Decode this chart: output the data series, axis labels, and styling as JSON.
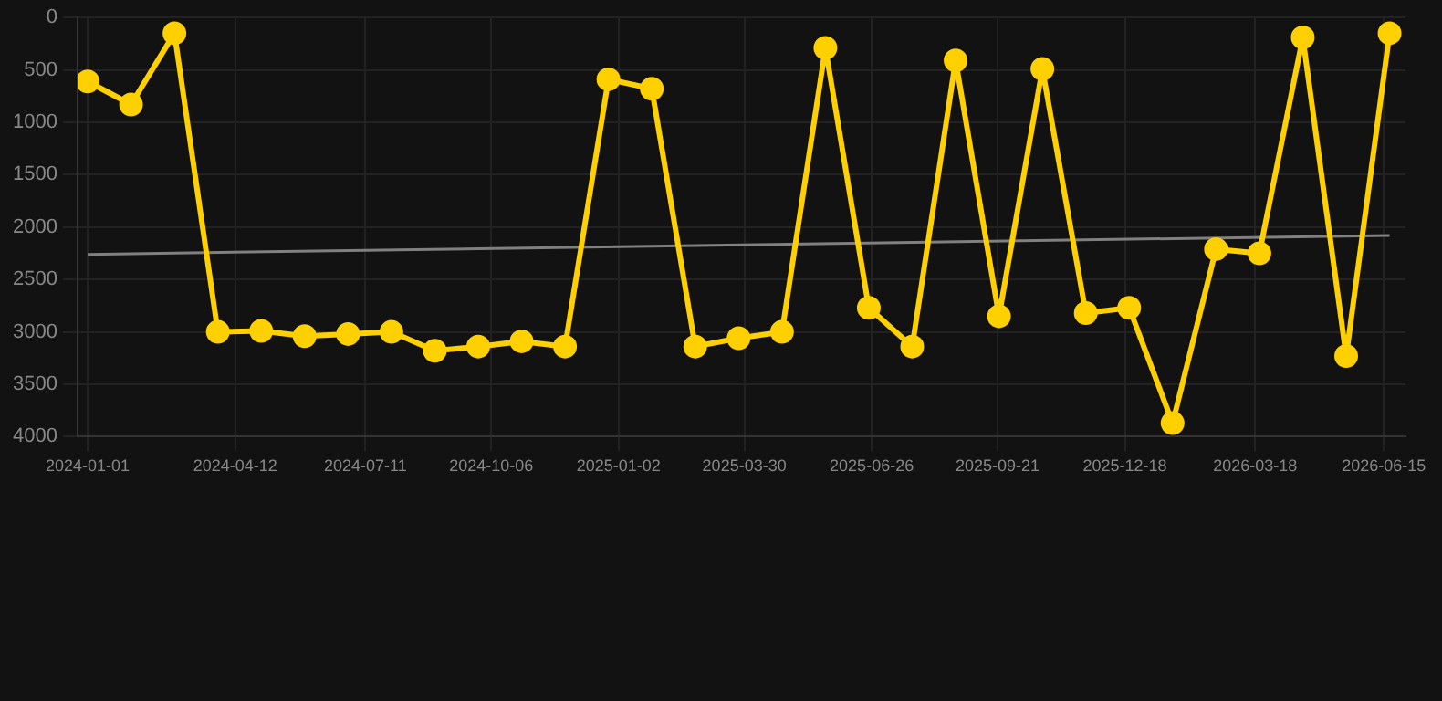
{
  "chart_data": {
    "type": "line",
    "x": [
      "2024-01-01",
      "2024-01-31",
      "2024-03-01",
      "2024-03-31",
      "2024-04-30",
      "2024-05-30",
      "2024-06-29",
      "2024-07-29",
      "2024-08-28",
      "2024-09-27",
      "2024-10-27",
      "2024-11-26",
      "2024-12-26",
      "2025-01-25",
      "2025-02-24",
      "2025-03-26",
      "2025-04-25",
      "2025-05-25",
      "2025-06-24",
      "2025-07-24",
      "2025-08-23",
      "2025-09-22",
      "2025-10-22",
      "2025-11-21",
      "2025-12-21",
      "2026-01-20",
      "2026-02-19",
      "2026-03-21",
      "2026-04-20",
      "2026-05-20",
      "2026-06-19"
    ],
    "series": [
      {
        "color": "#ffd000",
        "values": [
          610,
          830,
          150,
          3000,
          2990,
          3040,
          3020,
          3000,
          3180,
          3140,
          3090,
          3140,
          590,
          680,
          3140,
          3060,
          3000,
          290,
          2770,
          3140,
          410,
          2850,
          490,
          2820,
          2770,
          3870,
          2210,
          2250,
          190,
          3230,
          150
        ]
      },
      {
        "type": "line",
        "color": "#808080",
        "marker": "none",
        "x": [
          "2024-01-01",
          "2026-06-19"
        ],
        "values": [
          2260,
          2080
        ]
      }
    ],
    "ylim": [
      4000,
      0
    ],
    "yticks": [
      0,
      500,
      1000,
      1500,
      2000,
      2500,
      3000,
      3500,
      4000
    ],
    "xlim": [
      "2023-12-25",
      "2026-06-30"
    ],
    "xticks": [
      "2024-01-01",
      "2024-04-12",
      "2024-07-11",
      "2024-10-06",
      "2025-01-02",
      "2025-03-30",
      "2025-06-26",
      "2025-09-21",
      "2025-12-18",
      "2026-03-18",
      "2026-06-15"
    ],
    "grid": true,
    "legend": false,
    "marker": "circle",
    "line_style": "solid"
  }
}
